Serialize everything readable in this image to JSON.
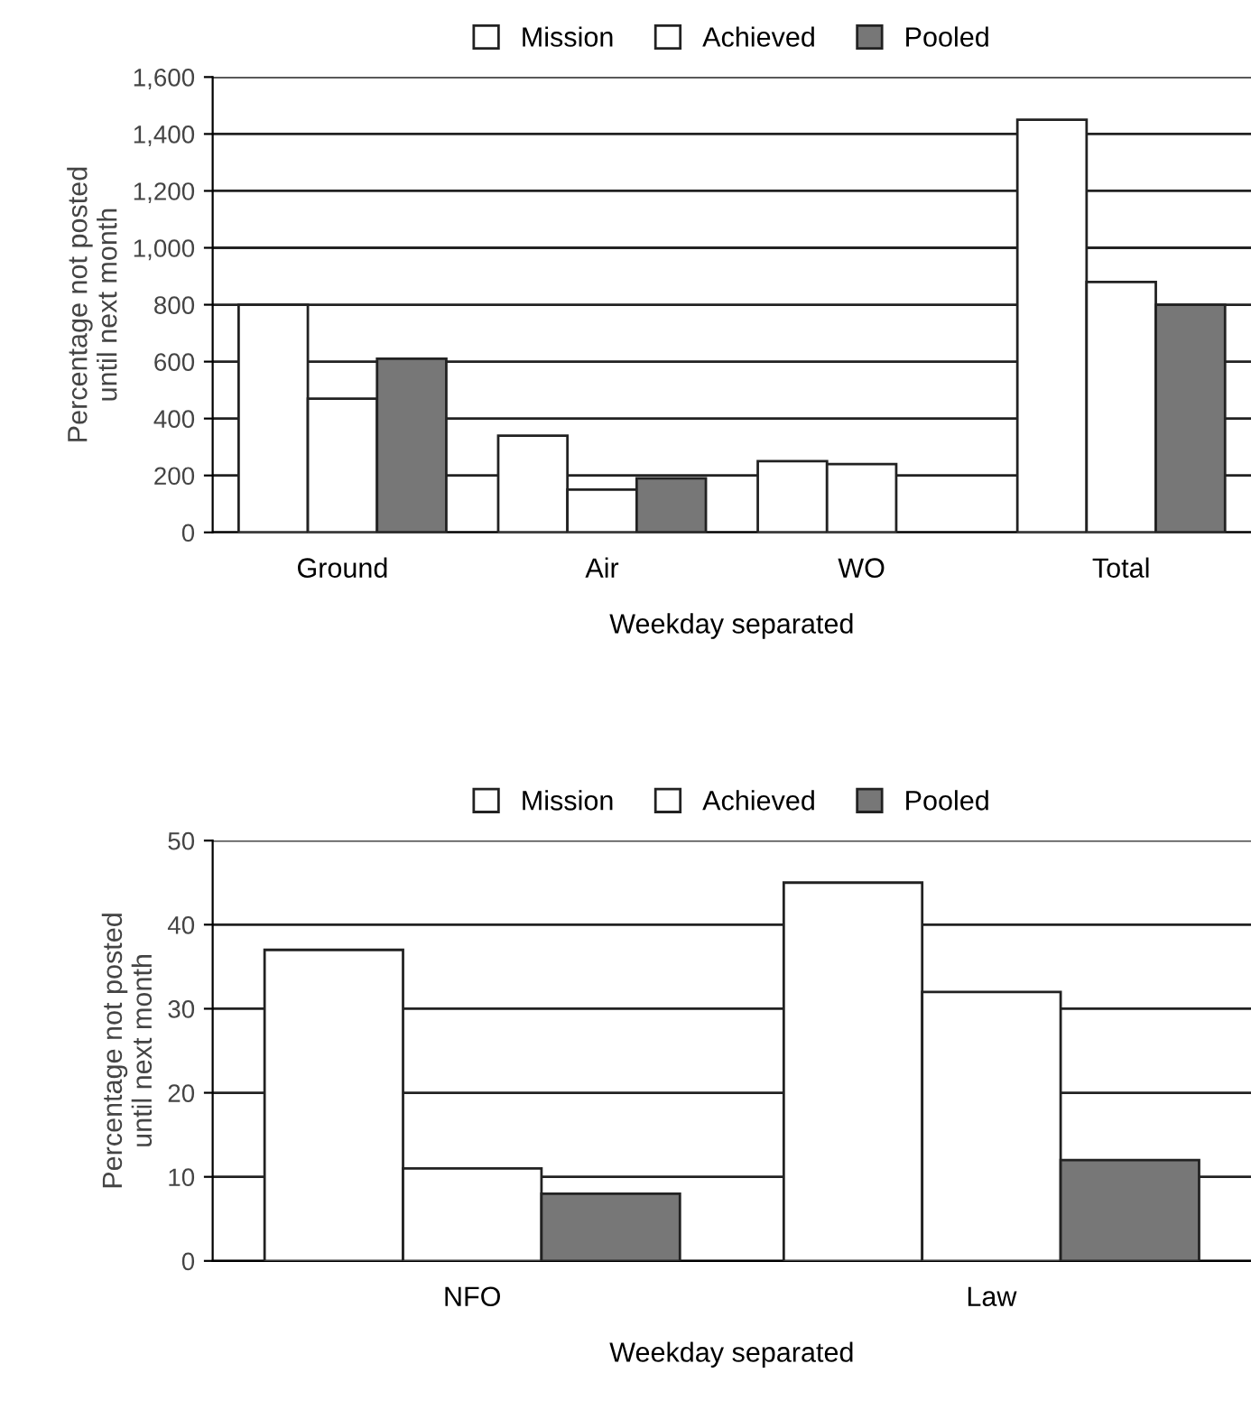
{
  "chart_data": [
    {
      "type": "bar",
      "xlabel": "Weekday separated",
      "ylabel": "Percentage not posted\nuntil next month",
      "categories": [
        "Ground",
        "Air",
        "WO",
        "Total"
      ],
      "series": [
        {
          "name": "Mission",
          "color": "#ffffff",
          "values": [
            800,
            340,
            250,
            1450
          ]
        },
        {
          "name": "Achieved",
          "color": "#ffffff",
          "values": [
            470,
            150,
            240,
            880
          ]
        },
        {
          "name": "Pooled",
          "color": "#777777",
          "values": [
            610,
            190,
            null,
            800
          ]
        }
      ],
      "ylim": [
        0,
        1600
      ],
      "yticks": [
        0,
        200,
        400,
        600,
        800,
        {
          "value": 1000,
          "label": "1,000"
        },
        {
          "value": 1200,
          "label": "1,200"
        },
        {
          "value": 1400,
          "label": "1,400"
        },
        {
          "value": 1600,
          "label": "1,600"
        }
      ],
      "grid": "y",
      "legend": "top"
    },
    {
      "type": "bar",
      "xlabel": "Weekday separated",
      "ylabel": "Percentage not posted\nuntil next month",
      "categories": [
        "NFO",
        "Law"
      ],
      "series": [
        {
          "name": "Mission",
          "color": "#ffffff",
          "values": [
            37,
            45
          ]
        },
        {
          "name": "Achieved",
          "color": "#ffffff",
          "values": [
            11,
            32
          ]
        },
        {
          "name": "Pooled",
          "color": "#777777",
          "values": [
            8,
            12
          ]
        }
      ],
      "ylim": [
        0,
        50
      ],
      "yticks": [
        0,
        10,
        20,
        30,
        40,
        50
      ],
      "grid": "y",
      "legend": "top"
    }
  ]
}
